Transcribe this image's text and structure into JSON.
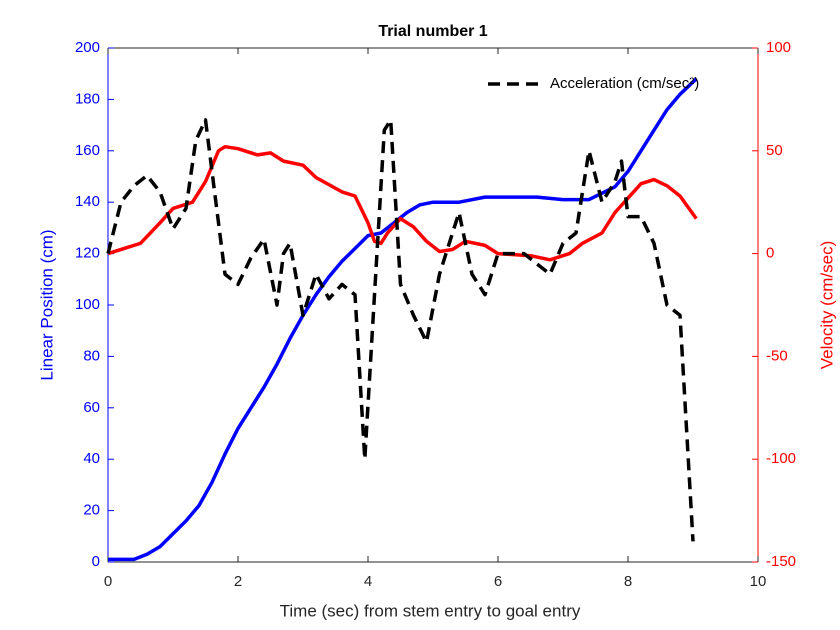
{
  "chart_data": {
    "type": "line",
    "title": "Trial number 1",
    "xlabel": "Time (sec) from stem entry to goal entry",
    "ylabel": "Linear Position (cm)",
    "y2label": "Velocity (cm/sec)",
    "ylabel_color": "#0000ff",
    "y2label_color": "#ff0000",
    "xlim": [
      0,
      10
    ],
    "xticks": [
      0,
      2,
      4,
      6,
      8,
      10
    ],
    "ylim": [
      0,
      200
    ],
    "yticks": [
      0,
      20,
      40,
      60,
      80,
      100,
      120,
      140,
      160,
      180,
      200
    ],
    "y2lim": [
      -150,
      100
    ],
    "y2ticks": [
      -150,
      -100,
      -50,
      0,
      50,
      100
    ],
    "grid": false,
    "legend": "top-right",
    "series": [
      {
        "color": "#0000ff",
        "axis": "y",
        "dashed": false,
        "x": [
          0,
          0.4,
          0.6,
          0.8,
          1.0,
          1.2,
          1.4,
          1.6,
          1.8,
          2.0,
          2.2,
          2.4,
          2.6,
          2.8,
          3.0,
          3.2,
          3.4,
          3.6,
          3.8,
          4.0,
          4.2,
          4.4,
          4.6,
          4.8,
          5.0,
          5.4,
          5.8,
          6.2,
          6.6,
          7.0,
          7.4,
          7.8,
          8.0,
          8.2,
          8.4,
          8.6,
          8.8,
          9.05
        ],
        "values": [
          1,
          1,
          3,
          6,
          11,
          16,
          22,
          31,
          42,
          52,
          60,
          68,
          77,
          87,
          96,
          104,
          111,
          117,
          122,
          127,
          128,
          132,
          136,
          139,
          140,
          140,
          142,
          142,
          142,
          141,
          141,
          146,
          152,
          160,
          168,
          176,
          182,
          188
        ]
      },
      {
        "color": "#ff0000",
        "axis": "y2",
        "dashed": false,
        "x": [
          0,
          0.5,
          0.8,
          1.0,
          1.3,
          1.5,
          1.7,
          1.8,
          2.0,
          2.3,
          2.5,
          2.7,
          3.0,
          3.2,
          3.6,
          3.8,
          4.0,
          4.1,
          4.2,
          4.3,
          4.5,
          4.7,
          4.9,
          5.1,
          5.3,
          5.5,
          5.8,
          6.0,
          6.5,
          6.8,
          7.1,
          7.3,
          7.6,
          7.8,
          8.0,
          8.2,
          8.4,
          8.6,
          8.8,
          9.05
        ],
        "values": [
          0,
          5,
          15,
          22,
          25,
          35,
          50,
          52,
          51,
          48,
          49,
          45,
          43,
          37,
          30,
          28,
          15,
          6,
          5,
          10,
          17,
          13,
          6,
          1,
          2,
          6,
          4,
          0,
          -1,
          -3,
          0,
          5,
          10,
          20,
          27,
          34,
          36,
          33,
          28,
          17
        ]
      },
      {
        "name": "Acceleration (cm/sec²)",
        "color": "#000000",
        "axis": "y2",
        "dashed": true,
        "x": [
          0,
          0.2,
          0.4,
          0.6,
          0.8,
          1.0,
          1.2,
          1.35,
          1.5,
          1.6,
          1.8,
          2.0,
          2.2,
          2.4,
          2.6,
          2.7,
          2.8,
          3.0,
          3.2,
          3.4,
          3.6,
          3.8,
          3.95,
          4.1,
          4.25,
          4.35,
          4.5,
          4.7,
          4.9,
          5.1,
          5.4,
          5.6,
          5.8,
          6.0,
          6.4,
          6.6,
          6.8,
          7.0,
          7.2,
          7.4,
          7.6,
          7.8,
          7.9,
          8.0,
          8.2,
          8.4,
          8.6,
          8.8,
          9.0
        ],
        "values": [
          0,
          25,
          33,
          38,
          30,
          12,
          22,
          55,
          65,
          40,
          -10,
          -15,
          -2,
          7,
          -25,
          0,
          5,
          -30,
          -10,
          -22,
          -15,
          -20,
          -100,
          -20,
          60,
          65,
          -15,
          -30,
          -43,
          -10,
          20,
          -10,
          -20,
          0,
          0,
          -5,
          -10,
          5,
          10,
          50,
          25,
          35,
          45,
          18,
          18,
          5,
          -25,
          -30,
          -140
        ]
      }
    ]
  }
}
